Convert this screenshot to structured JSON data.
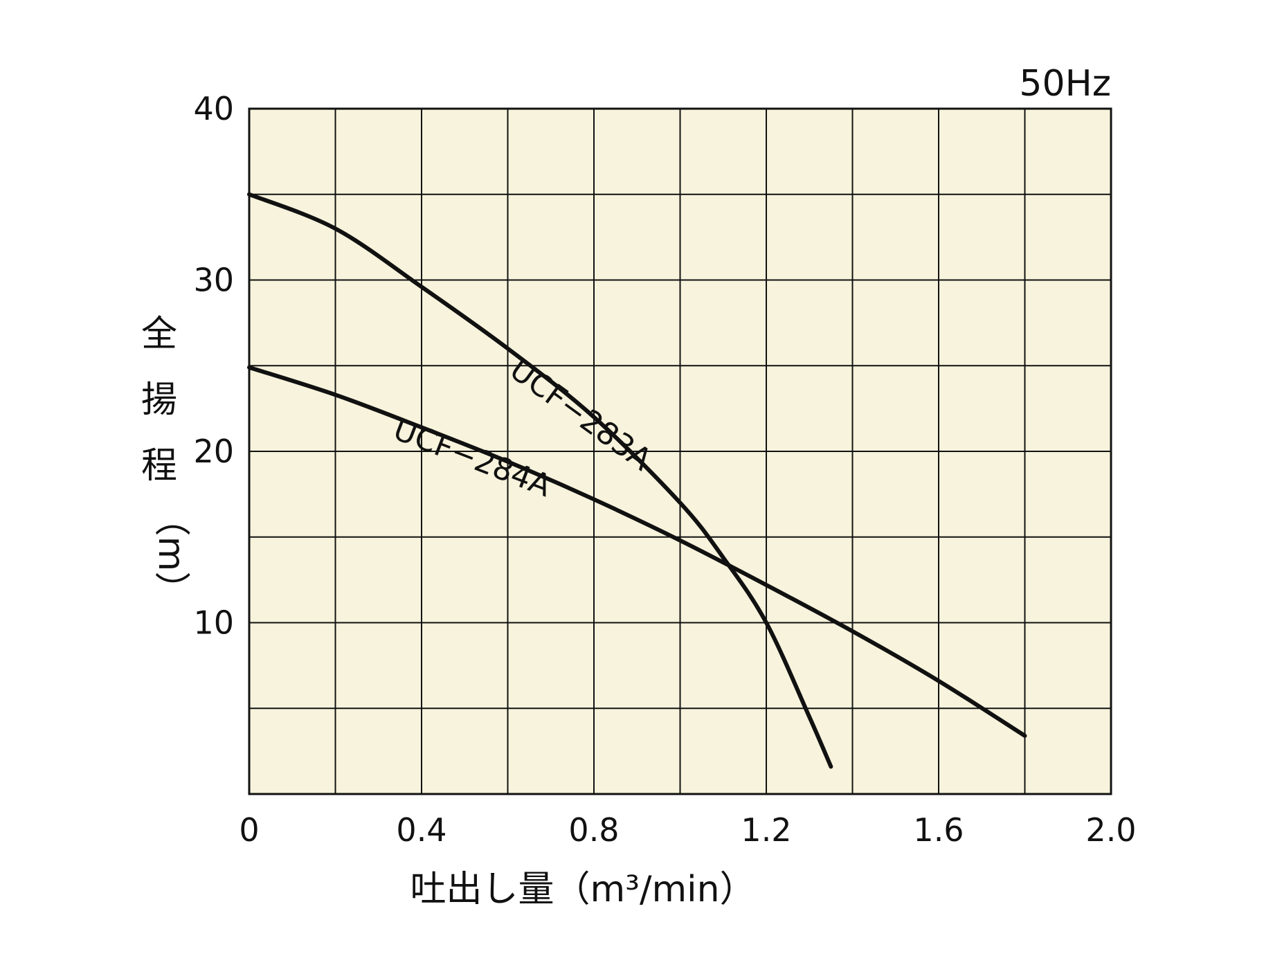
{
  "chart_data": {
    "type": "line",
    "frequency_label": "50Hz",
    "xlabel": "吐出し量（m³/min）",
    "ylabel": [
      "全",
      "揚",
      "程",
      "（m）"
    ],
    "xlim": [
      0,
      2.0
    ],
    "ylim": [
      0,
      40
    ],
    "x_ticks": [
      "0",
      "0.4",
      "0.8",
      "1.2",
      "1.6",
      "2.0"
    ],
    "x_tick_values": [
      0,
      0.4,
      0.8,
      1.2,
      1.6,
      2.0
    ],
    "y_ticks": [
      "10",
      "20",
      "30",
      "40"
    ],
    "y_tick_values": [
      10,
      20,
      30,
      40
    ],
    "x_grid_step": 0.2,
    "y_grid_step": 5,
    "grid": true,
    "background_color": "#f7f3dc",
    "line_color": "#111111",
    "series": [
      {
        "name": "UCF−283A",
        "x": [
          0,
          0.2,
          0.4,
          0.6,
          0.8,
          1.0,
          1.1,
          1.2,
          1.3,
          1.35
        ],
        "y": [
          35,
          33,
          29.6,
          26,
          22,
          17,
          13.8,
          10,
          4.5,
          1.6
        ]
      },
      {
        "name": "UCF−284A",
        "x": [
          0,
          0.2,
          0.4,
          0.6,
          0.8,
          1.0,
          1.2,
          1.4,
          1.6,
          1.8
        ],
        "y": [
          24.9,
          23.3,
          21.4,
          19.4,
          17.2,
          14.8,
          12.2,
          9.5,
          6.6,
          3.4
        ]
      }
    ]
  }
}
